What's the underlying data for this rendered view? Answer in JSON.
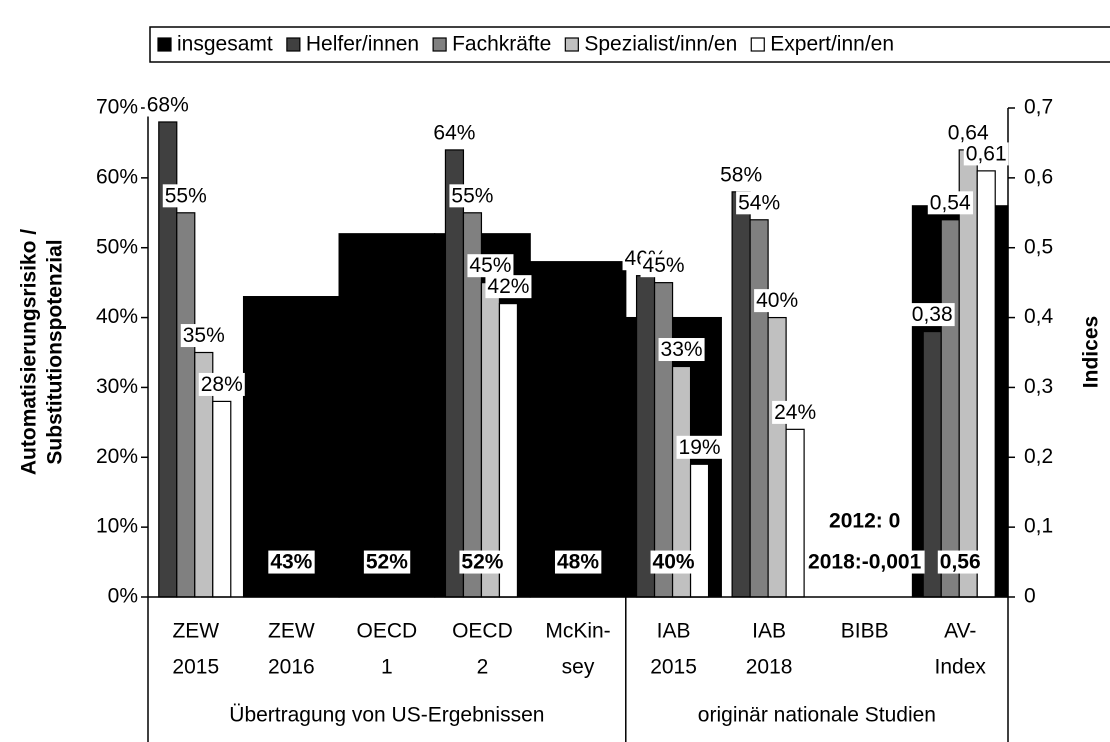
{
  "chart_data": {
    "type": "bar",
    "categories": [
      [
        "ZEW",
        "2015"
      ],
      [
        "ZEW",
        "2016"
      ],
      [
        "OECD",
        "1"
      ],
      [
        "OECD",
        "2"
      ],
      [
        "McKin-",
        "sey"
      ],
      [
        "IAB",
        "2015"
      ],
      [
        "IAB",
        "2018"
      ],
      [
        "BIBB"
      ],
      [
        "AV-",
        "Index"
      ]
    ],
    "groups": [
      {
        "label": "Übertragung von US-Ergebnissen",
        "span": [
          0,
          4
        ]
      },
      {
        "label": "originär nationale Studien",
        "span": [
          5,
          8
        ]
      }
    ],
    "ylabel": [
      "Automatisierungsrisiko /",
      "Substitutionspotenzial"
    ],
    "y2label": "Indices",
    "ylim": [
      0,
      70
    ],
    "yticks": [
      {
        "value": 0,
        "label": "0%"
      },
      {
        "value": 10,
        "label": "10%"
      },
      {
        "value": 20,
        "label": "20%"
      },
      {
        "value": 30,
        "label": "30%"
      },
      {
        "value": 40,
        "label": "40%"
      },
      {
        "value": 50,
        "label": "50%"
      },
      {
        "value": 60,
        "label": "60%"
      },
      {
        "value": 70,
        "label": "70%"
      }
    ],
    "y2lim": [
      0,
      0.7
    ],
    "y2ticks": [
      0,
      {
        "value": 0.1,
        "label": "0,1"
      },
      {
        "value": 0.2,
        "label": "0,2"
      },
      {
        "value": 0.3,
        "label": "0,3"
      },
      {
        "value": 0.4,
        "label": "0,4"
      },
      {
        "value": 0.5,
        "label": "0,5"
      },
      {
        "value": 0.6,
        "label": "0,6"
      },
      {
        "value": 0.7,
        "label": "0,7"
      }
    ],
    "series": [
      {
        "name": "insgesamt",
        "color": "#000000",
        "values": [
          null,
          43,
          52,
          52,
          48,
          40,
          null,
          null,
          null
        ],
        "value_labels": [
          null,
          "43%",
          "52%",
          "52%",
          "48%",
          "40%",
          null,
          null,
          null
        ],
        "index_values": [
          null,
          null,
          null,
          null,
          null,
          null,
          null,
          null,
          0.56
        ],
        "index_value_labels": [
          null,
          null,
          null,
          null,
          null,
          null,
          null,
          null,
          "0,56"
        ]
      },
      {
        "name": "Helfer/innen",
        "color": "#404040",
        "values": [
          68,
          null,
          null,
          64,
          null,
          46,
          58,
          null,
          null
        ],
        "value_labels": [
          "68%",
          null,
          null,
          "64%",
          null,
          "46%",
          "58%",
          null,
          null
        ],
        "index_values": [
          null,
          null,
          null,
          null,
          null,
          null,
          null,
          null,
          0.38
        ],
        "index_value_labels": [
          null,
          null,
          null,
          null,
          null,
          null,
          null,
          null,
          "0,38"
        ]
      },
      {
        "name": "Fachkräfte",
        "color": "#808080",
        "values": [
          55,
          null,
          null,
          55,
          null,
          45,
          54,
          null,
          null
        ],
        "value_labels": [
          "55%",
          null,
          null,
          "55%",
          null,
          "45%",
          "54%",
          null,
          null
        ],
        "index_values": [
          null,
          null,
          null,
          null,
          null,
          null,
          null,
          null,
          0.54
        ],
        "index_value_labels": [
          null,
          null,
          null,
          null,
          null,
          null,
          null,
          null,
          "0,54"
        ]
      },
      {
        "name": "Spezialist/inn/en",
        "color": "#c0c0c0",
        "values": [
          35,
          null,
          null,
          45,
          null,
          33,
          40,
          null,
          null
        ],
        "value_labels": [
          "35%",
          null,
          null,
          "45%",
          null,
          "33%",
          "40%",
          null,
          null
        ],
        "index_values": [
          null,
          null,
          null,
          null,
          null,
          null,
          null,
          null,
          0.64
        ],
        "index_value_labels": [
          null,
          null,
          null,
          null,
          null,
          null,
          null,
          null,
          "0,64"
        ]
      },
      {
        "name": "Expert/inn/en",
        "color": "#ffffff",
        "values": [
          28,
          null,
          null,
          42,
          null,
          19,
          24,
          null,
          null
        ],
        "value_labels": [
          "28%",
          null,
          null,
          "42%",
          null,
          "19%",
          "24%",
          null,
          null
        ],
        "index_values": [
          null,
          null,
          null,
          null,
          null,
          null,
          null,
          null,
          0.61
        ],
        "index_value_labels": [
          null,
          null,
          null,
          null,
          null,
          null,
          null,
          null,
          "0,61"
        ]
      }
    ],
    "annotations": [
      "2012: 0",
      "2018:-0,001"
    ]
  }
}
